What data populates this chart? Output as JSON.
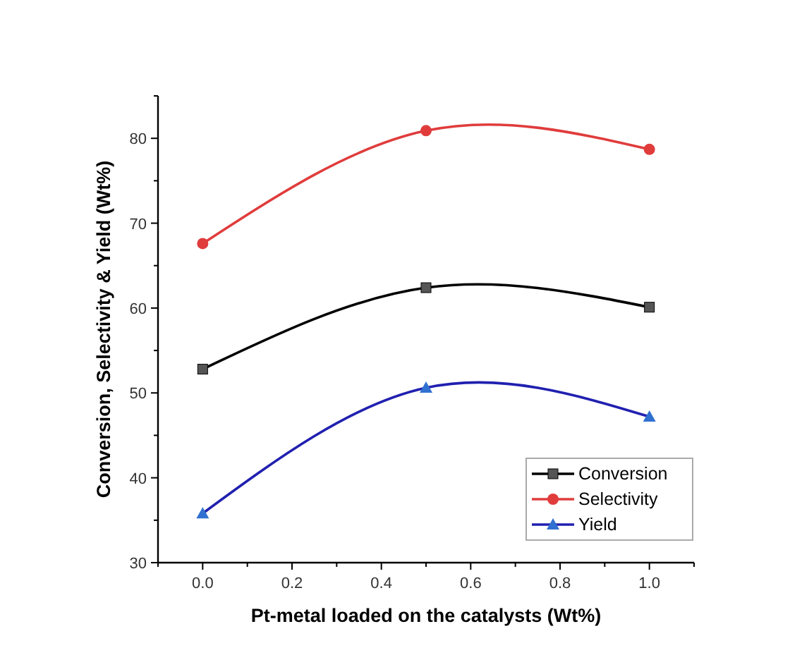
{
  "chart_data": {
    "type": "line",
    "xlabel": "Pt-metal loaded on the catalysts (Wt%)",
    "ylabel": "Conversion, Selectivity & Yield (Wt%)",
    "x": [
      0,
      0.5,
      1.0
    ],
    "series": [
      {
        "name": "Conversion",
        "color": "#000000",
        "marker": "square",
        "values": [
          52.8,
          62.4,
          60.1
        ]
      },
      {
        "name": "Selectivity",
        "color": "#e03c3c",
        "marker": "circle",
        "values": [
          67.6,
          80.9,
          78.7
        ]
      },
      {
        "name": "Yield",
        "color": "#2020b0",
        "marker": "triangle",
        "values": [
          35.8,
          50.6,
          47.2
        ]
      }
    ],
    "xlim": [
      -0.1,
      1.1
    ],
    "xticks": [
      {
        "value": -0.1,
        "label": null
      },
      {
        "value": 0,
        "label": "0.0"
      },
      {
        "value": 0.1,
        "label": null
      },
      {
        "value": 0.2,
        "label": "0.2"
      },
      {
        "value": 0.3,
        "label": null
      },
      {
        "value": 0.4,
        "label": "0.4"
      },
      {
        "value": 0.5,
        "label": null
      },
      {
        "value": 0.6,
        "label": "0.6"
      },
      {
        "value": 0.7,
        "label": null
      },
      {
        "value": 0.8,
        "label": "0.8"
      },
      {
        "value": 0.9,
        "label": null
      },
      {
        "value": 1,
        "label": "1.0"
      },
      {
        "value": 1.1,
        "label": null
      }
    ],
    "ylim": [
      30,
      85
    ],
    "yticks": [
      30,
      {
        "value": 35,
        "label": null
      },
      40,
      {
        "value": 45,
        "label": null
      },
      50,
      {
        "value": 55,
        "label": null
      },
      60,
      {
        "value": 65,
        "label": null
      },
      70,
      {
        "value": 75,
        "label": null
      },
      80,
      {
        "value": 85,
        "label": null
      }
    ],
    "grid": false,
    "legend": "bottom right",
    "line_style": "solid"
  }
}
